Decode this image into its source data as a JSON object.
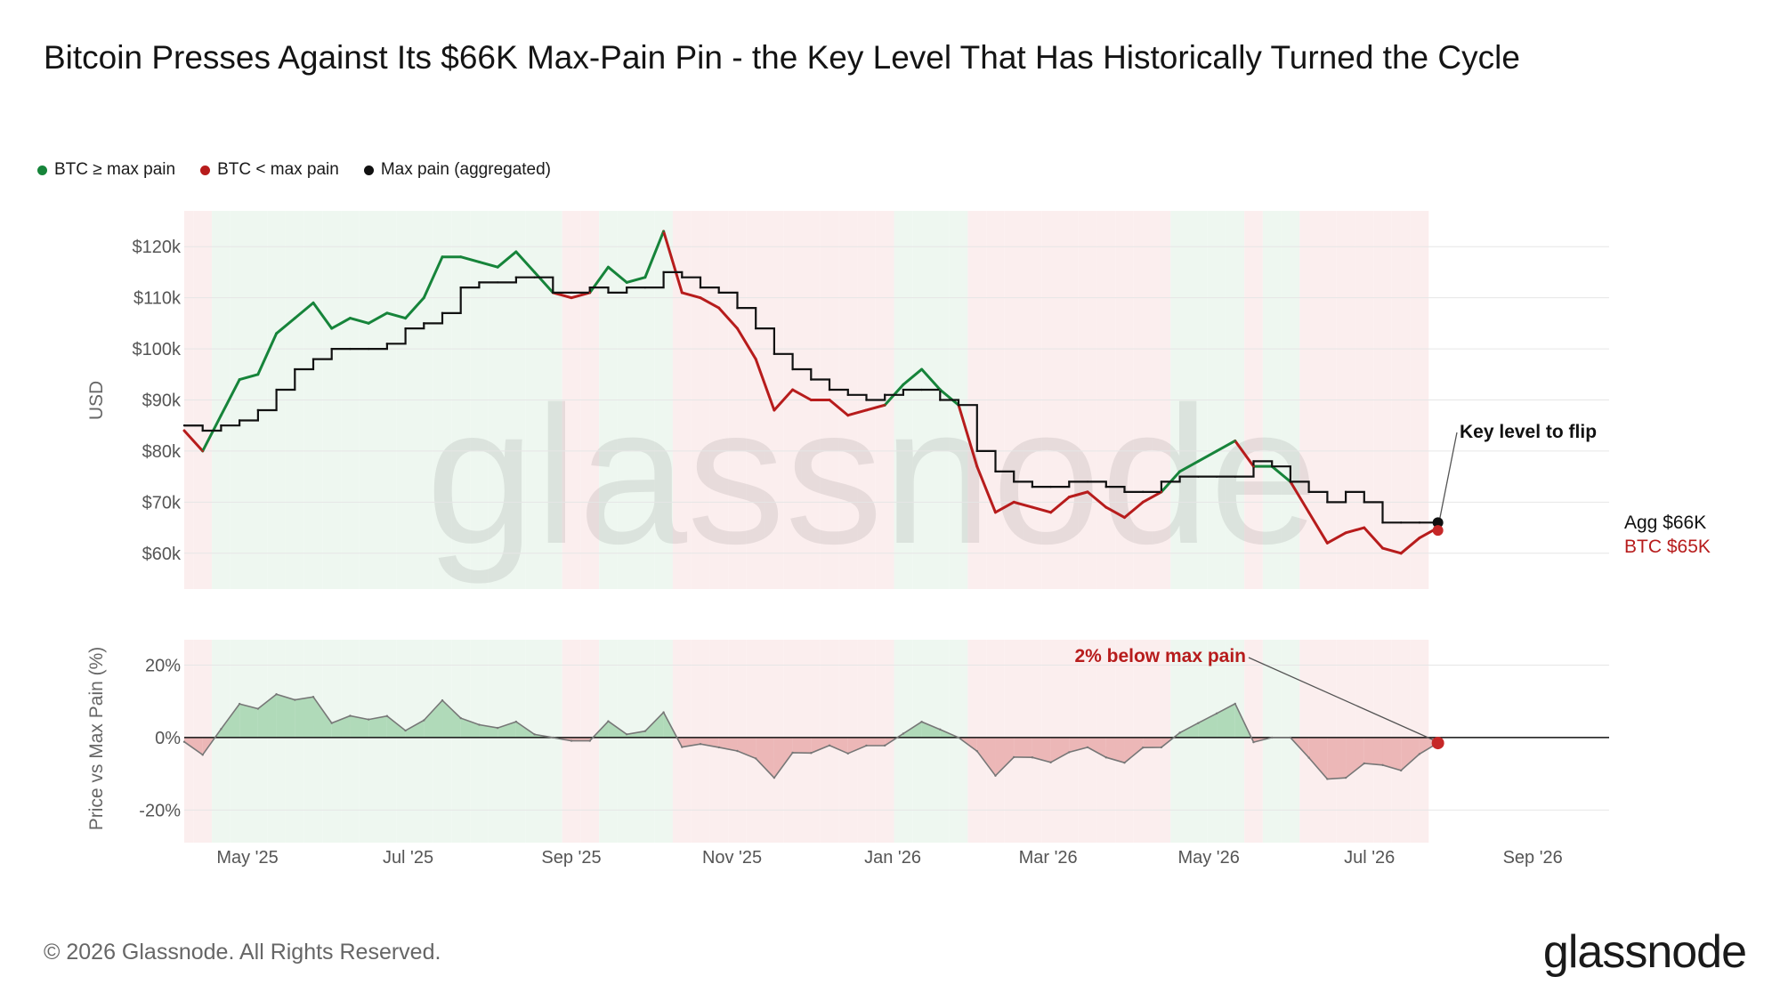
{
  "title": "Bitcoin Presses Against Its $66K Max-Pain Pin - the Key Level That Has Historically Turned the Cycle",
  "legend": [
    {
      "label": "BTC ≥ max pain",
      "color": "#16843a"
    },
    {
      "label": "BTC < max pain",
      "color": "#b71c1c"
    },
    {
      "label": "Max pain (aggregated)",
      "color": "#111111"
    }
  ],
  "footer": {
    "copyright": "© 2026 Glassnode. All Rights Reserved.",
    "logo": "glassnode"
  },
  "watermark": "glassnode",
  "chart_data": [
    {
      "type": "line",
      "panel": "price",
      "ylabel": "USD",
      "y_ticks": [
        "$60k",
        "$70k",
        "$80k",
        "$90k",
        "$100k",
        "$110k",
        "$120k"
      ],
      "ylim": [
        53000,
        127000
      ],
      "x_ticks": [
        "May '25",
        "Jul '25",
        "Sep '25",
        "Nov '25",
        "Jan '26",
        "Mar '26",
        "May '26",
        "Jul '26",
        "Sep '26"
      ],
      "x_tick_dates": [
        "2025-05-01",
        "2025-07-01",
        "2025-09-01",
        "2025-11-01",
        "2026-01-01",
        "2026-03-01",
        "2026-05-01",
        "2026-07-01",
        "2026-09-01"
      ],
      "xlim": [
        "2025-04-07",
        "2026-09-30"
      ],
      "x": [
        "2025-04-07",
        "2025-04-14",
        "2025-04-21",
        "2025-04-28",
        "2025-05-05",
        "2025-05-12",
        "2025-05-19",
        "2025-05-26",
        "2025-06-02",
        "2025-06-09",
        "2025-06-16",
        "2025-06-23",
        "2025-06-30",
        "2025-07-07",
        "2025-07-14",
        "2025-07-21",
        "2025-07-28",
        "2025-08-04",
        "2025-08-11",
        "2025-08-18",
        "2025-08-25",
        "2025-09-01",
        "2025-09-08",
        "2025-09-15",
        "2025-09-22",
        "2025-09-29",
        "2025-10-06",
        "2025-10-13",
        "2025-10-20",
        "2025-10-27",
        "2025-11-03",
        "2025-11-10",
        "2025-11-17",
        "2025-11-24",
        "2025-12-01",
        "2025-12-08",
        "2025-12-15",
        "2025-12-22",
        "2025-12-29",
        "2026-01-05",
        "2026-01-12",
        "2026-01-19",
        "2026-01-26",
        "2026-02-02",
        "2026-02-09",
        "2026-02-16",
        "2026-02-23",
        "2026-03-02",
        "2026-03-09",
        "2026-03-16",
        "2026-03-23",
        "2026-03-30",
        "2026-04-06",
        "2026-04-13",
        "2026-04-20",
        "2026-04-27",
        "2026-05-04",
        "2026-05-11",
        "2026-05-18",
        "2026-05-25",
        "2026-06-01",
        "2026-06-08",
        "2026-06-15",
        "2026-06-22",
        "2026-06-29",
        "2026-07-06",
        "2026-07-13",
        "2026-07-20",
        "2026-07-27"
      ],
      "series": [
        {
          "name": "BTC",
          "color_above": "#16843a",
          "color_below": "#b71c1c",
          "values": [
            84000,
            80000,
            87000,
            94000,
            95000,
            103000,
            106000,
            109000,
            104000,
            106000,
            105000,
            107000,
            106000,
            110000,
            118000,
            118000,
            117000,
            116000,
            119000,
            115000,
            111000,
            110000,
            111000,
            116000,
            113000,
            114000,
            123000,
            111000,
            110000,
            108000,
            104000,
            98000,
            88000,
            92000,
            90000,
            90000,
            87000,
            88000,
            89000,
            93000,
            96000,
            92000,
            89000,
            77000,
            68000,
            70000,
            69000,
            68000,
            71000,
            72000,
            69000,
            67000,
            70000,
            72000,
            76000,
            78000,
            80000,
            82000,
            77000,
            77000,
            74000,
            68000,
            62000,
            64000,
            65000,
            61000,
            60000,
            63000,
            65000
          ]
        },
        {
          "name": "Max pain (aggregated)",
          "color": "#111111",
          "values": [
            85000,
            84000,
            85000,
            86000,
            88000,
            92000,
            96000,
            98000,
            100000,
            100000,
            100000,
            101000,
            104000,
            105000,
            107000,
            112000,
            113000,
            113000,
            114000,
            114000,
            111000,
            111000,
            112000,
            111000,
            112000,
            112000,
            115000,
            114000,
            112000,
            111000,
            108000,
            104000,
            99000,
            96000,
            94000,
            92000,
            91000,
            90000,
            91000,
            92000,
            92000,
            90000,
            89000,
            80000,
            76000,
            74000,
            73000,
            73000,
            74000,
            74000,
            73000,
            72000,
            72000,
            74000,
            75000,
            75000,
            75000,
            75000,
            78000,
            77000,
            74000,
            72000,
            70000,
            72000,
            70000,
            66000,
            66000,
            66000,
            66000
          ]
        }
      ],
      "annotations": [
        {
          "text": "Key level to flip"
        },
        {
          "text": "Agg $66K",
          "color": "#111111"
        },
        {
          "text": "BTC $65K",
          "color": "#b71c1c"
        }
      ]
    },
    {
      "type": "area",
      "panel": "deviation",
      "ylabel": "Price vs Max Pain (%)",
      "y_ticks": [
        "20%",
        "0%",
        "-20%"
      ],
      "ylim": [
        -29,
        27
      ],
      "colors": {
        "positive": "#16843a",
        "negative": "#b71c1c"
      },
      "annotations": [
        {
          "text": "2% below max pain",
          "color": "#b71c1c"
        }
      ]
    }
  ]
}
